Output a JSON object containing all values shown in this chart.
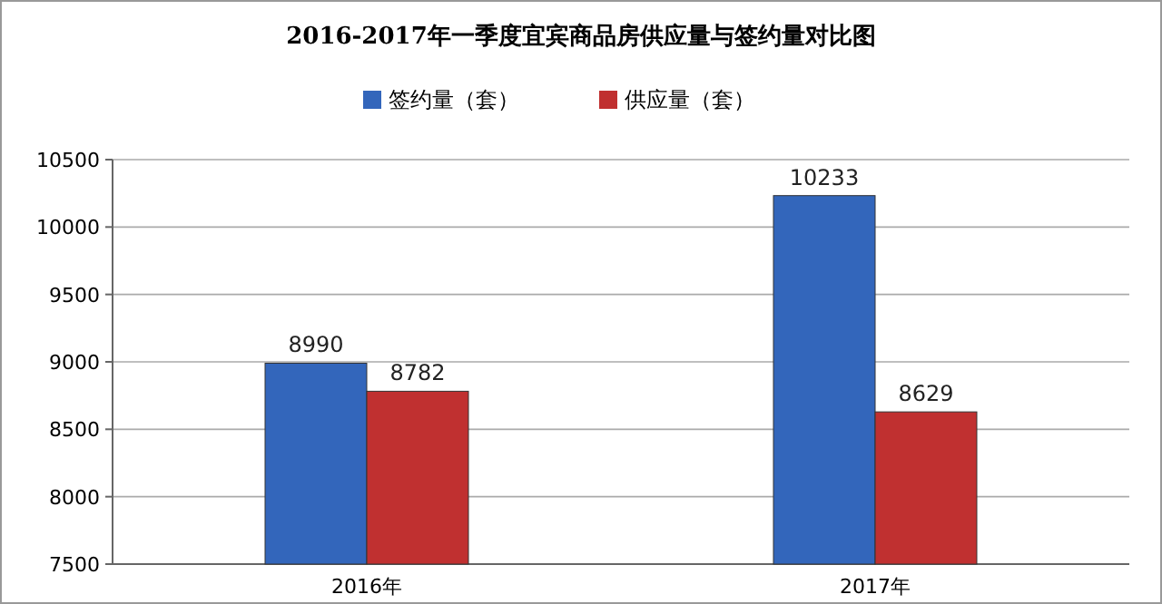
{
  "chart_data": {
    "type": "bar",
    "title": "2016-2017年一季度宜宾商品房供应量与签约量对比图",
    "categories": [
      "2016年",
      "2017年"
    ],
    "series": [
      {
        "name": "签约量（套）",
        "color": "#3366bb",
        "values": [
          8990,
          10233
        ]
      },
      {
        "name": "供应量（套）",
        "color": "#c03030",
        "values": [
          8782,
          8629
        ]
      }
    ],
    "ylim": [
      7500,
      10500
    ],
    "yticks": [
      7500,
      8000,
      8500,
      9000,
      9500,
      10000,
      10500
    ],
    "grid": "y",
    "legend": "top",
    "data_labels": true
  }
}
